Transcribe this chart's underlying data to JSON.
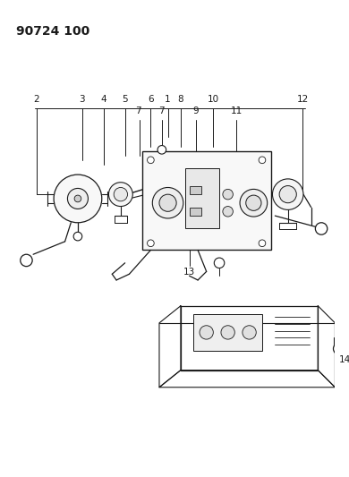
{
  "title": "90724 100",
  "bg_color": "#ffffff",
  "lc": "#1a1a1a",
  "title_fontsize": 10,
  "label_fontsize": 7.5,
  "fig_width": 3.9,
  "fig_height": 5.33,
  "dpi": 100
}
